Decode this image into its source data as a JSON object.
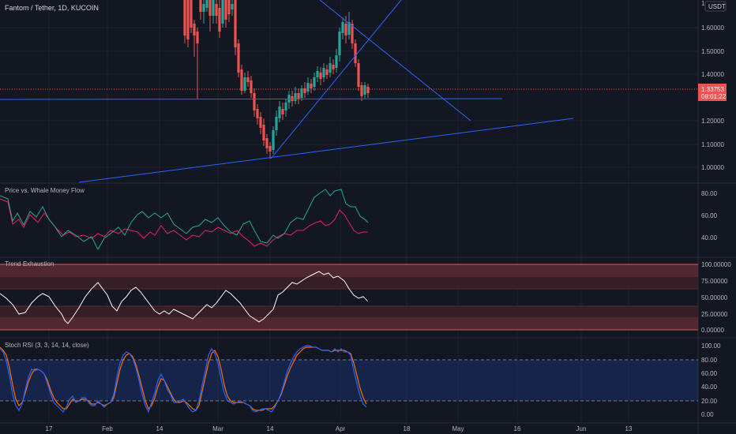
{
  "header": {
    "symbol_title": "Fantom / Tether, 1D, KUCOIN",
    "currency": "USDT"
  },
  "price_scale": {
    "ticks": [
      "1.60000",
      "1.50000",
      "1.40000",
      "1.20000",
      "1.10000",
      "1.00000"
    ],
    "top_partial": "1.",
    "last_price": "1.33753",
    "countdown": "08:01:22"
  },
  "panes": {
    "whale": {
      "title": "Price vs. Whale Money Flow",
      "ticks": [
        "80.00",
        "60.00",
        "40.00"
      ]
    },
    "trend": {
      "title": "Trend Exhaustion",
      "ticks": [
        "100.00000",
        "75.00000",
        "50.00000",
        "25.00000",
        "0.00000"
      ]
    },
    "stoch": {
      "title": "Stoch RSI (3, 3, 14, 14, close)",
      "ticks": [
        "100.00",
        "80.00",
        "60.00",
        "40.00",
        "20.00",
        "0.00"
      ]
    }
  },
  "time_axis": [
    "17",
    "Feb",
    "14",
    "Mar",
    "14",
    "Apr",
    "18",
    "May",
    "16",
    "Jun",
    "13"
  ],
  "colors": {
    "bg": "#131722",
    "grid": "#1e222d",
    "up": "#26a69a",
    "down": "#ef5350",
    "trendline": "#2962ff",
    "text": "#b2b5be",
    "whale_price": "#26a69a",
    "whale_flow": "#e91e63",
    "stoch_k": "#2962ff",
    "stoch_d": "#ff6d00",
    "trend_line": "#ffffff"
  }
}
